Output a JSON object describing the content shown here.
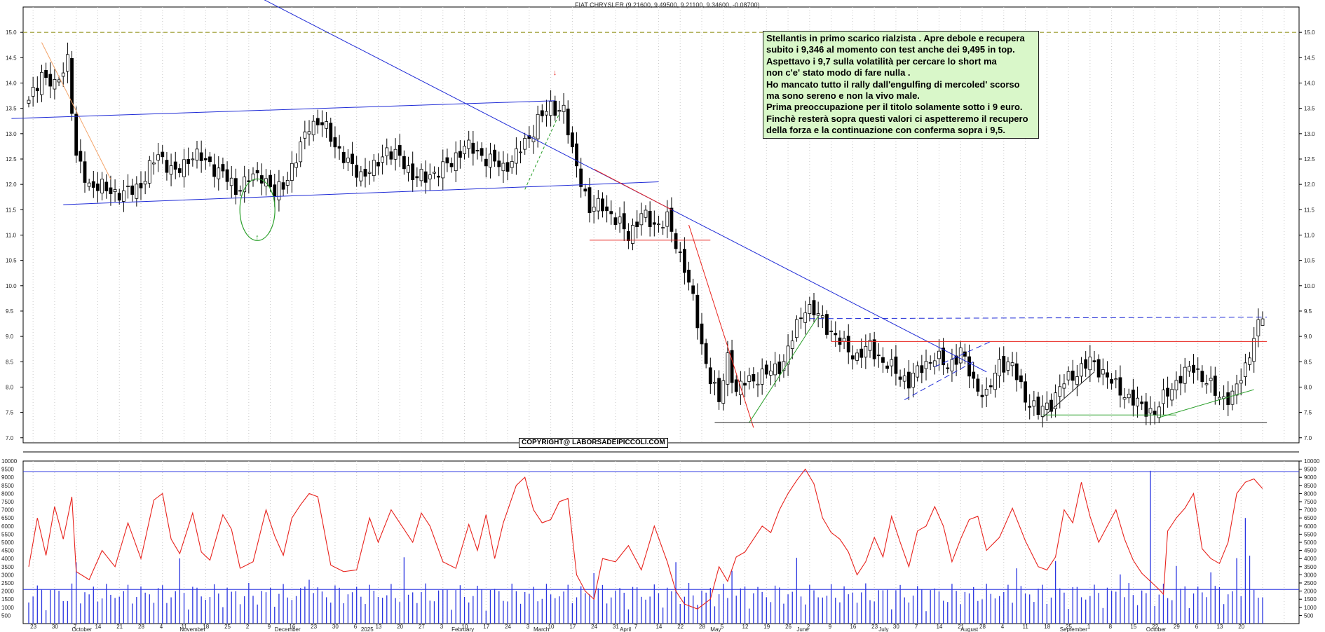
{
  "header": {
    "title": "FIAT CHRYSLER (9.21600, 9.49500, 9.21100, 9.34600, -0.08700)"
  },
  "note": {
    "lines": [
      "Stellantis in primo scarico rialzista . Apre debole e recupera",
      "subito i 9,346 al momento con test anche dei 9,495 in top.",
      "Aspettavo i 9,7 sulla volatilità per cercare lo short ma",
      "non c'e' stato modo di fare nulla .",
      "Ho mancato tutto il rally dall'engulfing di mercoled' scorso",
      "ma sono sereno e non la vivo male.",
      "Prima preoccupazione per il titolo solamente sotto i 9 euro.",
      "Finchè resterà sopra questi valori ci aspetteremo il recupero",
      "della forza e la continuazione con conferma sopra i 9,5."
    ]
  },
  "copyright": "COPYRIGHT@ LABORSADEIPICCOLI.COM",
  "colors": {
    "candle": "#000000",
    "trend_blue": "#1f2bd6",
    "trend_red": "#e8241e",
    "trend_green": "#2ca02c",
    "trend_orange": "#f4a46a",
    "volume": "#2a35e0",
    "volatility": "#e8241e",
    "grid": "#c8c8c8",
    "top_dash": "#9a9a2a"
  },
  "chart_data": [
    {
      "type": "candlestick",
      "title": "FIAT CHRYSLER (9.21600, 9.49500, 9.21100, 9.34600, -0.08700)",
      "ylim": [
        6.9,
        15.5
      ],
      "yticks": [
        "7.0",
        "7.5",
        "8.0",
        "8.5",
        "9.0",
        "9.5",
        "10.0",
        "10.5",
        "11.0",
        "11.5",
        "12.0",
        "12.5",
        "13.0",
        "13.5",
        "14.0",
        "14.5",
        "15.0"
      ],
      "y_axis_side": "right",
      "grid": true,
      "last_bar": {
        "open": 9.216,
        "high": 9.495,
        "low": 9.211,
        "close": 9.346,
        "change": -0.087
      },
      "anchors": [
        [
          0,
          13.6
        ],
        [
          3,
          14.2
        ],
        [
          6,
          13.9
        ],
        [
          9,
          14.5
        ],
        [
          11,
          12.5
        ],
        [
          14,
          12.0
        ],
        [
          18,
          11.9
        ],
        [
          22,
          11.8
        ],
        [
          26,
          12.0
        ],
        [
          30,
          12.6
        ],
        [
          34,
          12.2
        ],
        [
          38,
          12.6
        ],
        [
          42,
          12.4
        ],
        [
          45,
          12.2
        ],
        [
          48,
          11.9
        ],
        [
          51,
          12.1
        ],
        [
          54,
          12.2
        ],
        [
          57,
          11.8
        ],
        [
          59,
          12.0
        ],
        [
          62,
          12.5
        ],
        [
          65,
          13.2
        ],
        [
          68,
          13.2
        ],
        [
          71,
          12.8
        ],
        [
          74,
          12.4
        ],
        [
          77,
          12.2
        ],
        [
          80,
          12.3
        ],
        [
          83,
          12.7
        ],
        [
          86,
          12.5
        ],
        [
          89,
          12.2
        ],
        [
          92,
          12.1
        ],
        [
          95,
          12.3
        ],
        [
          98,
          12.4
        ],
        [
          101,
          12.8
        ],
        [
          104,
          12.6
        ],
        [
          107,
          12.5
        ],
        [
          110,
          12.3
        ],
        [
          113,
          12.6
        ],
        [
          116,
          12.9
        ],
        [
          118,
          13.3
        ],
        [
          121,
          13.5
        ],
        [
          124,
          13.5
        ],
        [
          126,
          12.6
        ],
        [
          128,
          12.1
        ],
        [
          130,
          11.5
        ],
        [
          133,
          11.6
        ],
        [
          136,
          11.3
        ],
        [
          139,
          11.0
        ],
        [
          142,
          11.4
        ],
        [
          145,
          11.2
        ],
        [
          148,
          11.3
        ],
        [
          150,
          10.8
        ],
        [
          152,
          10.4
        ],
        [
          154,
          9.7
        ],
        [
          156,
          8.8
        ],
        [
          158,
          8.2
        ],
        [
          160,
          7.7
        ],
        [
          162,
          8.6
        ],
        [
          164,
          7.9
        ],
        [
          166,
          8.1
        ],
        [
          169,
          8.2
        ],
        [
          172,
          8.3
        ],
        [
          175,
          8.5
        ],
        [
          178,
          9.2
        ],
        [
          180,
          9.6
        ],
        [
          183,
          9.4
        ],
        [
          186,
          9.1
        ],
        [
          189,
          8.8
        ],
        [
          192,
          8.6
        ],
        [
          195,
          8.8
        ],
        [
          198,
          8.5
        ],
        [
          201,
          8.3
        ],
        [
          204,
          8.1
        ],
        [
          207,
          8.4
        ],
        [
          210,
          8.6
        ],
        [
          213,
          8.4
        ],
        [
          216,
          8.7
        ],
        [
          219,
          8.1
        ],
        [
          222,
          7.8
        ],
        [
          225,
          8.5
        ],
        [
          228,
          8.4
        ],
        [
          231,
          7.8
        ],
        [
          234,
          7.5
        ],
        [
          237,
          7.7
        ],
        [
          240,
          8.1
        ],
        [
          243,
          8.3
        ],
        [
          246,
          8.5
        ],
        [
          249,
          8.3
        ],
        [
          252,
          8.0
        ],
        [
          255,
          7.8
        ],
        [
          258,
          7.6
        ],
        [
          261,
          7.5
        ],
        [
          264,
          7.9
        ],
        [
          267,
          8.2
        ],
        [
          270,
          8.4
        ],
        [
          273,
          8.1
        ],
        [
          276,
          7.8
        ],
        [
          279,
          7.8
        ],
        [
          282,
          8.4
        ],
        [
          284,
          9.0
        ],
        [
          286,
          9.35
        ]
      ],
      "x_labels_top": [
        "23",
        "30",
        "7",
        "14",
        "21",
        "28",
        "4",
        "11",
        "18",
        "25",
        "2",
        "9",
        "16",
        "23",
        "30",
        "6",
        "13",
        "20",
        "27",
        "3",
        "10",
        "17",
        "24",
        "3",
        "10",
        "17",
        "24",
        "31",
        "7",
        "14",
        "22",
        "28",
        "5",
        "12",
        "19",
        "26",
        "2",
        "9",
        "16",
        "23",
        "30",
        "7",
        "14",
        "21",
        "28",
        "4",
        "11",
        "18",
        "25",
        "1",
        "8",
        "15",
        "22",
        "29",
        "6",
        "13",
        "20"
      ],
      "x_labels_months": [
        "October",
        "November",
        "December",
        "2025",
        "February",
        "March",
        "April",
        "May",
        "June",
        "July",
        "August",
        "September",
        "October"
      ]
    },
    {
      "type": "bar+line",
      "ylim": [
        0,
        10000
      ],
      "yticks": [
        "500",
        "1000",
        "1500",
        "2000",
        "2500",
        "3000",
        "3500",
        "4000",
        "4500",
        "5000",
        "5500",
        "6000",
        "6500",
        "7000",
        "7500",
        "8000",
        "8500",
        "9000",
        "9500",
        "10000"
      ],
      "series": [
        {
          "kind": "bar",
          "color": "#2a35e0"
        },
        {
          "kind": "line",
          "color": "#e8241e"
        }
      ],
      "hlines": [
        9350,
        2100
      ],
      "line_anchors": [
        [
          0,
          3500
        ],
        [
          2,
          6500
        ],
        [
          4,
          4200
        ],
        [
          6,
          7200
        ],
        [
          8,
          5200
        ],
        [
          10,
          7800
        ],
        [
          11,
          3200
        ],
        [
          14,
          2700
        ],
        [
          17,
          4500
        ],
        [
          20,
          3500
        ],
        [
          23,
          6200
        ],
        [
          26,
          4000
        ],
        [
          29,
          7600
        ],
        [
          31,
          8000
        ],
        [
          33,
          5200
        ],
        [
          35,
          4300
        ],
        [
          38,
          6800
        ],
        [
          40,
          4400
        ],
        [
          42,
          3900
        ],
        [
          45,
          6700
        ],
        [
          47,
          5800
        ],
        [
          49,
          3400
        ],
        [
          52,
          3800
        ],
        [
          55,
          7000
        ],
        [
          57,
          5400
        ],
        [
          59,
          4200
        ],
        [
          61,
          6500
        ],
        [
          63,
          7300
        ],
        [
          65,
          8000
        ],
        [
          67,
          7800
        ],
        [
          70,
          3600
        ],
        [
          73,
          3200
        ],
        [
          76,
          3300
        ],
        [
          79,
          6500
        ],
        [
          81,
          5000
        ],
        [
          84,
          7000
        ],
        [
          86,
          6200
        ],
        [
          89,
          5000
        ],
        [
          91,
          6800
        ],
        [
          93,
          6000
        ],
        [
          96,
          3800
        ],
        [
          99,
          3400
        ],
        [
          102,
          6100
        ],
        [
          104,
          4500
        ],
        [
          106,
          6700
        ],
        [
          108,
          4000
        ],
        [
          110,
          6200
        ],
        [
          113,
          8500
        ],
        [
          115,
          9000
        ],
        [
          117,
          7000
        ],
        [
          119,
          6200
        ],
        [
          121,
          6400
        ],
        [
          123,
          7500
        ],
        [
          125,
          7700
        ],
        [
          127,
          3000
        ],
        [
          129,
          2000
        ],
        [
          131,
          1500
        ],
        [
          133,
          4000
        ],
        [
          136,
          3800
        ],
        [
          139,
          4800
        ],
        [
          142,
          3300
        ],
        [
          145,
          6000
        ],
        [
          148,
          3800
        ],
        [
          150,
          2000
        ],
        [
          152,
          1200
        ],
        [
          155,
          900
        ],
        [
          158,
          1500
        ],
        [
          160,
          3500
        ],
        [
          162,
          2600
        ],
        [
          164,
          4100
        ],
        [
          166,
          4400
        ],
        [
          168,
          5200
        ],
        [
          170,
          6000
        ],
        [
          172,
          5600
        ],
        [
          174,
          7000
        ],
        [
          176,
          8000
        ],
        [
          178,
          8800
        ],
        [
          180,
          9500
        ],
        [
          182,
          8600
        ],
        [
          184,
          6500
        ],
        [
          186,
          5600
        ],
        [
          188,
          5200
        ],
        [
          190,
          4400
        ],
        [
          192,
          3000
        ],
        [
          194,
          3800
        ],
        [
          196,
          5300
        ],
        [
          198,
          4100
        ],
        [
          200,
          6600
        ],
        [
          202,
          5000
        ],
        [
          204,
          3500
        ],
        [
          206,
          5700
        ],
        [
          208,
          6000
        ],
        [
          210,
          7200
        ],
        [
          212,
          6000
        ],
        [
          214,
          3800
        ],
        [
          216,
          5200
        ],
        [
          218,
          6400
        ],
        [
          220,
          6600
        ],
        [
          222,
          4500
        ],
        [
          225,
          5300
        ],
        [
          228,
          7100
        ],
        [
          231,
          5100
        ],
        [
          234,
          3500
        ],
        [
          236,
          3300
        ],
        [
          238,
          4100
        ],
        [
          240,
          7000
        ],
        [
          242,
          6200
        ],
        [
          244,
          8700
        ],
        [
          246,
          6600
        ],
        [
          248,
          5000
        ],
        [
          250,
          6000
        ],
        [
          252,
          7000
        ],
        [
          254,
          5200
        ],
        [
          256,
          3900
        ],
        [
          258,
          3100
        ],
        [
          260,
          2600
        ],
        [
          262,
          2100
        ],
        [
          263,
          1800
        ],
        [
          264,
          5700
        ],
        [
          266,
          6500
        ],
        [
          268,
          7100
        ],
        [
          270,
          8000
        ],
        [
          272,
          4600
        ],
        [
          274,
          4000
        ],
        [
          276,
          3700
        ],
        [
          278,
          5000
        ],
        [
          280,
          8000
        ],
        [
          282,
          8700
        ],
        [
          284,
          8900
        ],
        [
          286,
          8300
        ]
      ]
    }
  ]
}
